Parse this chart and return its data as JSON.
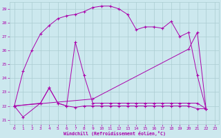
{
  "xlabel": "Windchill (Refroidissement éolien,°C)",
  "background_color": "#cce8ee",
  "grid_color": "#aaccd0",
  "line_color": "#aa00aa",
  "xlim_min": -0.5,
  "xlim_max": 23.5,
  "ylim_min": 20.7,
  "ylim_max": 29.5,
  "yticks": [
    21,
    22,
    23,
    24,
    25,
    26,
    27,
    28,
    29
  ],
  "xticks": [
    0,
    1,
    2,
    3,
    4,
    5,
    6,
    7,
    8,
    9,
    10,
    11,
    12,
    13,
    14,
    15,
    16,
    17,
    18,
    19,
    20,
    21,
    22,
    23
  ],
  "series1_x": [
    0,
    1,
    2,
    3,
    4,
    5,
    6,
    7,
    8,
    9,
    10,
    11,
    12,
    13,
    14,
    15,
    16,
    17,
    18,
    19,
    20,
    21,
    22
  ],
  "series1_y": [
    22.0,
    24.5,
    26.0,
    27.2,
    27.8,
    28.3,
    28.5,
    28.6,
    28.8,
    29.1,
    29.2,
    29.2,
    29.0,
    28.6,
    27.5,
    27.7,
    27.7,
    27.6,
    28.1,
    27.0,
    27.3,
    24.2,
    21.8
  ],
  "series2_x": [
    0,
    1,
    3,
    4,
    5,
    6,
    7,
    8,
    9,
    10,
    11,
    12,
    13,
    14,
    15,
    16,
    17,
    18,
    19,
    20,
    21,
    22
  ],
  "series2_y": [
    22.0,
    21.2,
    22.2,
    23.3,
    22.2,
    22.0,
    21.9,
    22.0,
    22.0,
    22.0,
    22.0,
    22.0,
    22.0,
    22.0,
    22.0,
    22.0,
    22.0,
    22.0,
    22.0,
    22.0,
    21.8,
    21.8
  ],
  "series3_x": [
    0,
    3,
    4,
    5,
    6,
    7,
    8,
    9,
    10,
    11,
    12,
    13,
    14,
    15,
    16,
    17,
    18,
    19,
    20,
    21,
    22
  ],
  "series3_y": [
    22.0,
    22.2,
    23.3,
    22.2,
    22.0,
    26.6,
    24.2,
    22.2,
    22.2,
    22.2,
    22.2,
    22.2,
    22.2,
    22.2,
    22.2,
    22.2,
    22.2,
    22.2,
    22.2,
    22.2,
    21.8
  ],
  "series4_x": [
    0,
    9,
    20,
    21,
    22
  ],
  "series4_y": [
    22.0,
    22.5,
    26.1,
    27.3,
    21.8
  ]
}
